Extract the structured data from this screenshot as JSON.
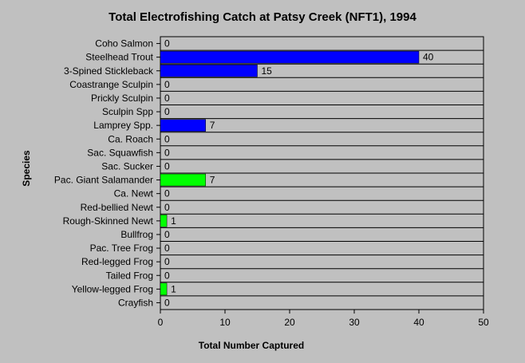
{
  "chart_data": {
    "type": "bar",
    "orientation": "horizontal",
    "title": "Total Electrofishing Catch at Patsy Creek (NFT1), 1994",
    "xlabel": "Total Number Captured",
    "ylabel": "Species",
    "xlim": [
      0,
      50
    ],
    "xticks": [
      "0",
      "10",
      "20",
      "30",
      "40",
      "50"
    ],
    "grid": "vertical-off-horizontal-on",
    "categories": [
      "Coho Salmon",
      "Steelhead Trout",
      "3-Spined Stickleback",
      "Coastrange Sculpin",
      "Prickly Sculpin",
      "Sculpin Spp",
      "Lamprey Spp.",
      "Ca. Roach",
      "Sac. Squawfish",
      "Sac. Sucker",
      "Pac. Giant Salamander",
      "Ca. Newt",
      "Red-bellied Newt",
      "Rough-Skinned Newt",
      "Bullfrog",
      "Pac. Tree Frog",
      "Red-legged Frog",
      "Tailed Frog",
      "Yellow-legged Frog",
      "Crayfish"
    ],
    "values": [
      0,
      40,
      15,
      0,
      0,
      0,
      7,
      0,
      0,
      0,
      7,
      0,
      0,
      1,
      0,
      0,
      0,
      0,
      1,
      0
    ],
    "value_labels": [
      "0",
      "40",
      "15",
      "0",
      "0",
      "0",
      "7",
      "0",
      "0",
      "0",
      "7",
      "0",
      "0",
      "1",
      "0",
      "0",
      "0",
      "0",
      "1",
      "0"
    ],
    "bar_colors": [
      "#0000ff",
      "#0000ff",
      "#0000ff",
      "#0000ff",
      "#0000ff",
      "#0000ff",
      "#0000ff",
      "#0000ff",
      "#0000ff",
      "#0000ff",
      "#00ff00",
      "#00ff00",
      "#00ff00",
      "#00ff00",
      "#00ff00",
      "#00ff00",
      "#00ff00",
      "#00ff00",
      "#00ff00",
      "#00ff00"
    ],
    "colors": {
      "plot_background": "#c0c0c0",
      "axis": "#000000",
      "gridline": "#000000"
    }
  }
}
